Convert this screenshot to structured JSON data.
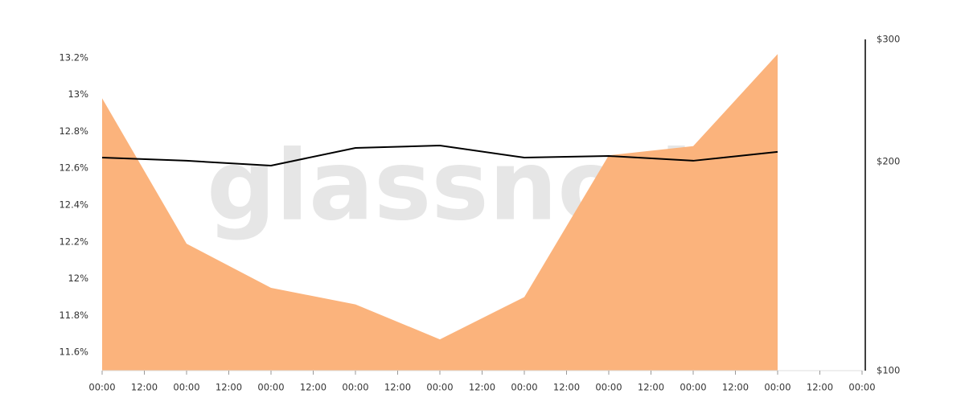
{
  "chart_data": {
    "type": "area-line",
    "watermark": "glassnode",
    "x": [
      0,
      24,
      48,
      72,
      96,
      120,
      144,
      168,
      192
    ],
    "xlim": [
      0,
      216
    ],
    "xticks": [
      {
        "value": 0,
        "label": "00:00"
      },
      {
        "value": 12,
        "label": "12:00"
      },
      {
        "value": 24,
        "label": "00:00"
      },
      {
        "value": 36,
        "label": "12:00"
      },
      {
        "value": 48,
        "label": "00:00"
      },
      {
        "value": 60,
        "label": "12:00"
      },
      {
        "value": 72,
        "label": "00:00"
      },
      {
        "value": 84,
        "label": "12:00"
      },
      {
        "value": 96,
        "label": "00:00"
      },
      {
        "value": 108,
        "label": "12:00"
      },
      {
        "value": 120,
        "label": "00:00"
      },
      {
        "value": 132,
        "label": "12:00"
      },
      {
        "value": 144,
        "label": "00:00"
      },
      {
        "value": 156,
        "label": "12:00"
      },
      {
        "value": 168,
        "label": "00:00"
      },
      {
        "value": 180,
        "label": "12:00"
      },
      {
        "value": 192,
        "label": "00:00"
      },
      {
        "value": 204,
        "label": "12:00"
      },
      {
        "value": 216,
        "label": "00:00"
      }
    ],
    "ylim": [
      11.5,
      13.3
    ],
    "yticks": [
      {
        "value": 11.6,
        "label": "11.6%"
      },
      {
        "value": 11.8,
        "label": "11.8%"
      },
      {
        "value": 12,
        "label": "12%"
      },
      {
        "value": 12.2,
        "label": "12.2%"
      },
      {
        "value": 12.4,
        "label": "12.4%"
      },
      {
        "value": 12.6,
        "label": "12.6%"
      },
      {
        "value": 12.8,
        "label": "12.8%"
      },
      {
        "value": 13,
        "label": "13%"
      },
      {
        "value": 13.2,
        "label": "13.2%"
      }
    ],
    "y2lim": [
      100,
      300
    ],
    "y2ticks": [
      {
        "value": 100,
        "label": "$100"
      },
      {
        "value": 200,
        "label": "$200"
      },
      {
        "value": 300,
        "label": "$300"
      }
    ],
    "y2_log_scale": true,
    "series": [
      {
        "kind": "area",
        "color": "#fbb37c",
        "values": [
          12.98,
          12.19,
          11.95,
          11.86,
          11.67,
          11.9,
          12.67,
          12.72,
          13.22
        ]
      },
      {
        "kind": "line",
        "axis": "y2",
        "color": "#000000",
        "values": [
          202.7,
          200.6,
          197.4,
          209.3,
          211,
          202.7,
          203.8,
          200.6,
          206.6
        ]
      }
    ]
  }
}
